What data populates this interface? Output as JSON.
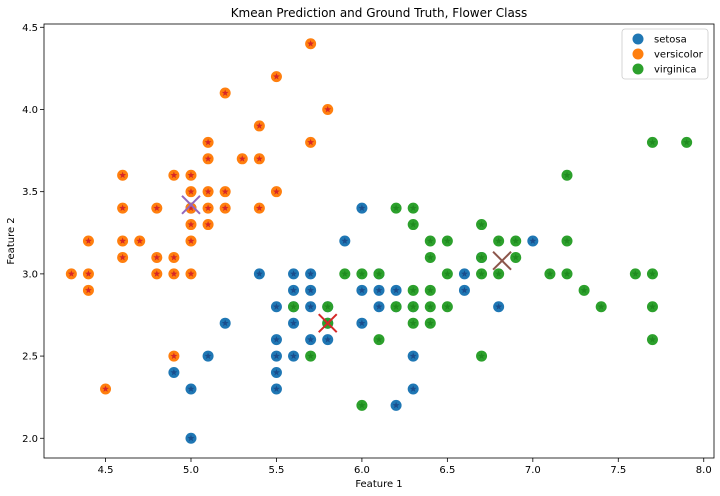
{
  "chart_data": {
    "type": "scatter",
    "title": "Kmean Prediction and Ground Truth, Flower Class",
    "xlabel": "Feature 1",
    "ylabel": "Feature 2",
    "xlim": [
      4.14,
      8.06
    ],
    "ylim": [
      1.88,
      4.52
    ],
    "x_ticks": [
      "4.5",
      "5.0",
      "5.5",
      "6.0",
      "6.5",
      "7.0",
      "7.5",
      "8.0"
    ],
    "y_ticks": [
      "2.0",
      "2.5",
      "3.0",
      "3.5",
      "4.0",
      "4.5"
    ],
    "legend_position": "top-right",
    "grid": false,
    "series": [
      {
        "name": "setosa",
        "color": "#1f77b4",
        "star_color": "#1a4d8c",
        "points": [
          [
            5.0,
            3.4
          ],
          [
            5.9,
            3.2
          ],
          [
            5.4,
            3.0
          ],
          [
            5.6,
            3.0
          ],
          [
            5.7,
            3.0
          ],
          [
            5.8,
            2.7
          ],
          [
            5.6,
            2.9
          ],
          [
            5.7,
            2.9
          ],
          [
            5.8,
            2.8
          ],
          [
            5.5,
            2.8
          ],
          [
            5.6,
            2.8
          ],
          [
            5.7,
            2.8
          ],
          [
            5.6,
            2.7
          ],
          [
            5.2,
            2.7
          ],
          [
            5.5,
            2.6
          ],
          [
            5.7,
            2.6
          ],
          [
            5.8,
            2.6
          ],
          [
            5.5,
            2.5
          ],
          [
            5.6,
            2.5
          ],
          [
            5.1,
            2.5
          ],
          [
            5.5,
            2.4
          ],
          [
            4.9,
            2.4
          ],
          [
            5.0,
            2.3
          ],
          [
            5.5,
            2.3
          ],
          [
            5.0,
            2.0
          ],
          [
            6.0,
            3.4
          ],
          [
            6.0,
            2.9
          ],
          [
            6.1,
            2.9
          ],
          [
            6.2,
            2.9
          ],
          [
            6.1,
            2.8
          ],
          [
            6.2,
            2.8
          ],
          [
            6.3,
            2.8
          ],
          [
            6.0,
            2.7
          ],
          [
            6.1,
            3.0
          ],
          [
            6.3,
            2.5
          ],
          [
            6.2,
            2.2
          ],
          [
            6.3,
            2.3
          ],
          [
            6.6,
            3.0
          ],
          [
            6.7,
            3.1
          ],
          [
            6.8,
            2.8
          ],
          [
            7.0,
            3.2
          ],
          [
            6.6,
            2.9
          ]
        ]
      },
      {
        "name": "versicolor",
        "color": "#ff7f0e",
        "star_color": "#d62728",
        "points": [
          [
            5.7,
            4.4
          ],
          [
            5.5,
            4.2
          ],
          [
            5.2,
            4.1
          ],
          [
            5.8,
            4.0
          ],
          [
            5.4,
            3.9
          ],
          [
            5.1,
            3.8
          ],
          [
            5.7,
            3.8
          ],
          [
            5.1,
            3.7
          ],
          [
            5.3,
            3.7
          ],
          [
            5.4,
            3.7
          ],
          [
            4.6,
            3.6
          ],
          [
            4.9,
            3.6
          ],
          [
            5.0,
            3.6
          ],
          [
            5.0,
            3.5
          ],
          [
            5.1,
            3.5
          ],
          [
            5.2,
            3.5
          ],
          [
            5.5,
            3.5
          ],
          [
            4.6,
            3.4
          ],
          [
            4.8,
            3.4
          ],
          [
            5.0,
            3.4
          ],
          [
            5.1,
            3.4
          ],
          [
            5.2,
            3.4
          ],
          [
            5.4,
            3.4
          ],
          [
            5.0,
            3.3
          ],
          [
            5.1,
            3.3
          ],
          [
            4.4,
            3.2
          ],
          [
            4.6,
            3.2
          ],
          [
            4.7,
            3.2
          ],
          [
            5.0,
            3.2
          ],
          [
            4.6,
            3.1
          ],
          [
            4.8,
            3.1
          ],
          [
            4.9,
            3.1
          ],
          [
            4.3,
            3.0
          ],
          [
            4.4,
            3.0
          ],
          [
            4.8,
            3.0
          ],
          [
            4.9,
            3.0
          ],
          [
            5.0,
            3.0
          ],
          [
            4.4,
            2.9
          ],
          [
            4.9,
            2.5
          ],
          [
            4.5,
            2.3
          ]
        ]
      },
      {
        "name": "virginica",
        "color": "#2ca02c",
        "star_color": "#1f8a1f",
        "points": [
          [
            7.7,
            3.8
          ],
          [
            7.9,
            3.8
          ],
          [
            7.2,
            3.6
          ],
          [
            6.2,
            3.4
          ],
          [
            6.3,
            3.4
          ],
          [
            6.3,
            3.3
          ],
          [
            6.7,
            3.3
          ],
          [
            6.4,
            3.2
          ],
          [
            6.5,
            3.2
          ],
          [
            6.8,
            3.2
          ],
          [
            6.9,
            3.2
          ],
          [
            7.2,
            3.2
          ],
          [
            6.4,
            3.1
          ],
          [
            6.7,
            3.1
          ],
          [
            6.9,
            3.1
          ],
          [
            5.9,
            3.0
          ],
          [
            6.0,
            3.0
          ],
          [
            6.1,
            3.0
          ],
          [
            6.5,
            3.0
          ],
          [
            6.7,
            3.0
          ],
          [
            6.8,
            3.0
          ],
          [
            7.1,
            3.0
          ],
          [
            7.2,
            3.0
          ],
          [
            7.6,
            3.0
          ],
          [
            7.7,
            3.0
          ],
          [
            6.3,
            2.9
          ],
          [
            6.4,
            2.9
          ],
          [
            7.3,
            2.9
          ],
          [
            5.6,
            2.8
          ],
          [
            5.8,
            2.8
          ],
          [
            6.2,
            2.8
          ],
          [
            6.3,
            2.8
          ],
          [
            6.4,
            2.8
          ],
          [
            6.5,
            2.8
          ],
          [
            7.4,
            2.8
          ],
          [
            7.7,
            2.8
          ],
          [
            5.8,
            2.7
          ],
          [
            6.3,
            2.7
          ],
          [
            6.4,
            2.7
          ],
          [
            6.1,
            2.6
          ],
          [
            7.7,
            2.6
          ],
          [
            5.7,
            2.5
          ],
          [
            6.7,
            2.5
          ],
          [
            6.0,
            2.2
          ]
        ]
      }
    ],
    "centroids": [
      {
        "x": 5.0,
        "y": 3.42,
        "color": "#9467bd"
      },
      {
        "x": 5.8,
        "y": 2.7,
        "color": "#d62728"
      },
      {
        "x": 6.82,
        "y": 3.08,
        "color": "#8c564b"
      }
    ]
  }
}
